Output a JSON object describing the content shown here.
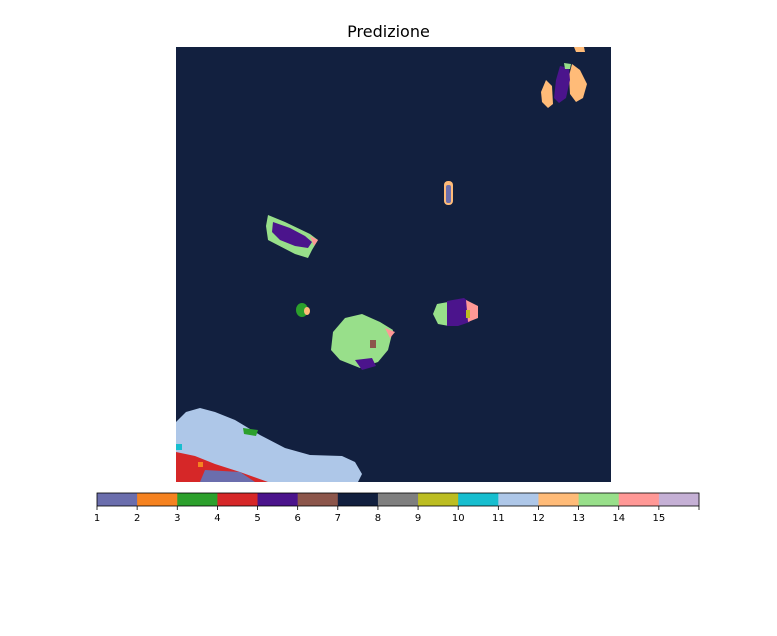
{
  "chart_data": {
    "type": "heatmap",
    "title": "Predizione",
    "xlabel": "",
    "ylabel": "",
    "background_class": 8,
    "colorbar": {
      "orientation": "horizontal",
      "tick_labels": [
        "1",
        "2",
        "3",
        "4",
        "5",
        "6",
        "7",
        "8",
        "9",
        "10",
        "11",
        "12",
        "13",
        "14",
        "15"
      ],
      "classes": [
        {
          "class": 1,
          "color": "#6b6ead"
        },
        {
          "class": 2,
          "color": "#f58220"
        },
        {
          "class": 3,
          "color": "#2ca02c"
        },
        {
          "class": 4,
          "color": "#d62728"
        },
        {
          "class": 5,
          "color": "#4b148c"
        },
        {
          "class": 6,
          "color": "#8c564b"
        },
        {
          "class": 7,
          "color": "#12203f"
        },
        {
          "class": 8,
          "color": "#7f7f7f"
        },
        {
          "class": 9,
          "color": "#bcbd22"
        },
        {
          "class": 10,
          "color": "#17becf"
        },
        {
          "class": 11,
          "color": "#aec7e8"
        },
        {
          "class": 12,
          "color": "#ffbb78"
        },
        {
          "class": 13,
          "color": "#98df8a"
        },
        {
          "class": 14,
          "color": "#ff9896"
        },
        {
          "class": 15,
          "color": "#c5b0d5"
        }
      ]
    }
  }
}
